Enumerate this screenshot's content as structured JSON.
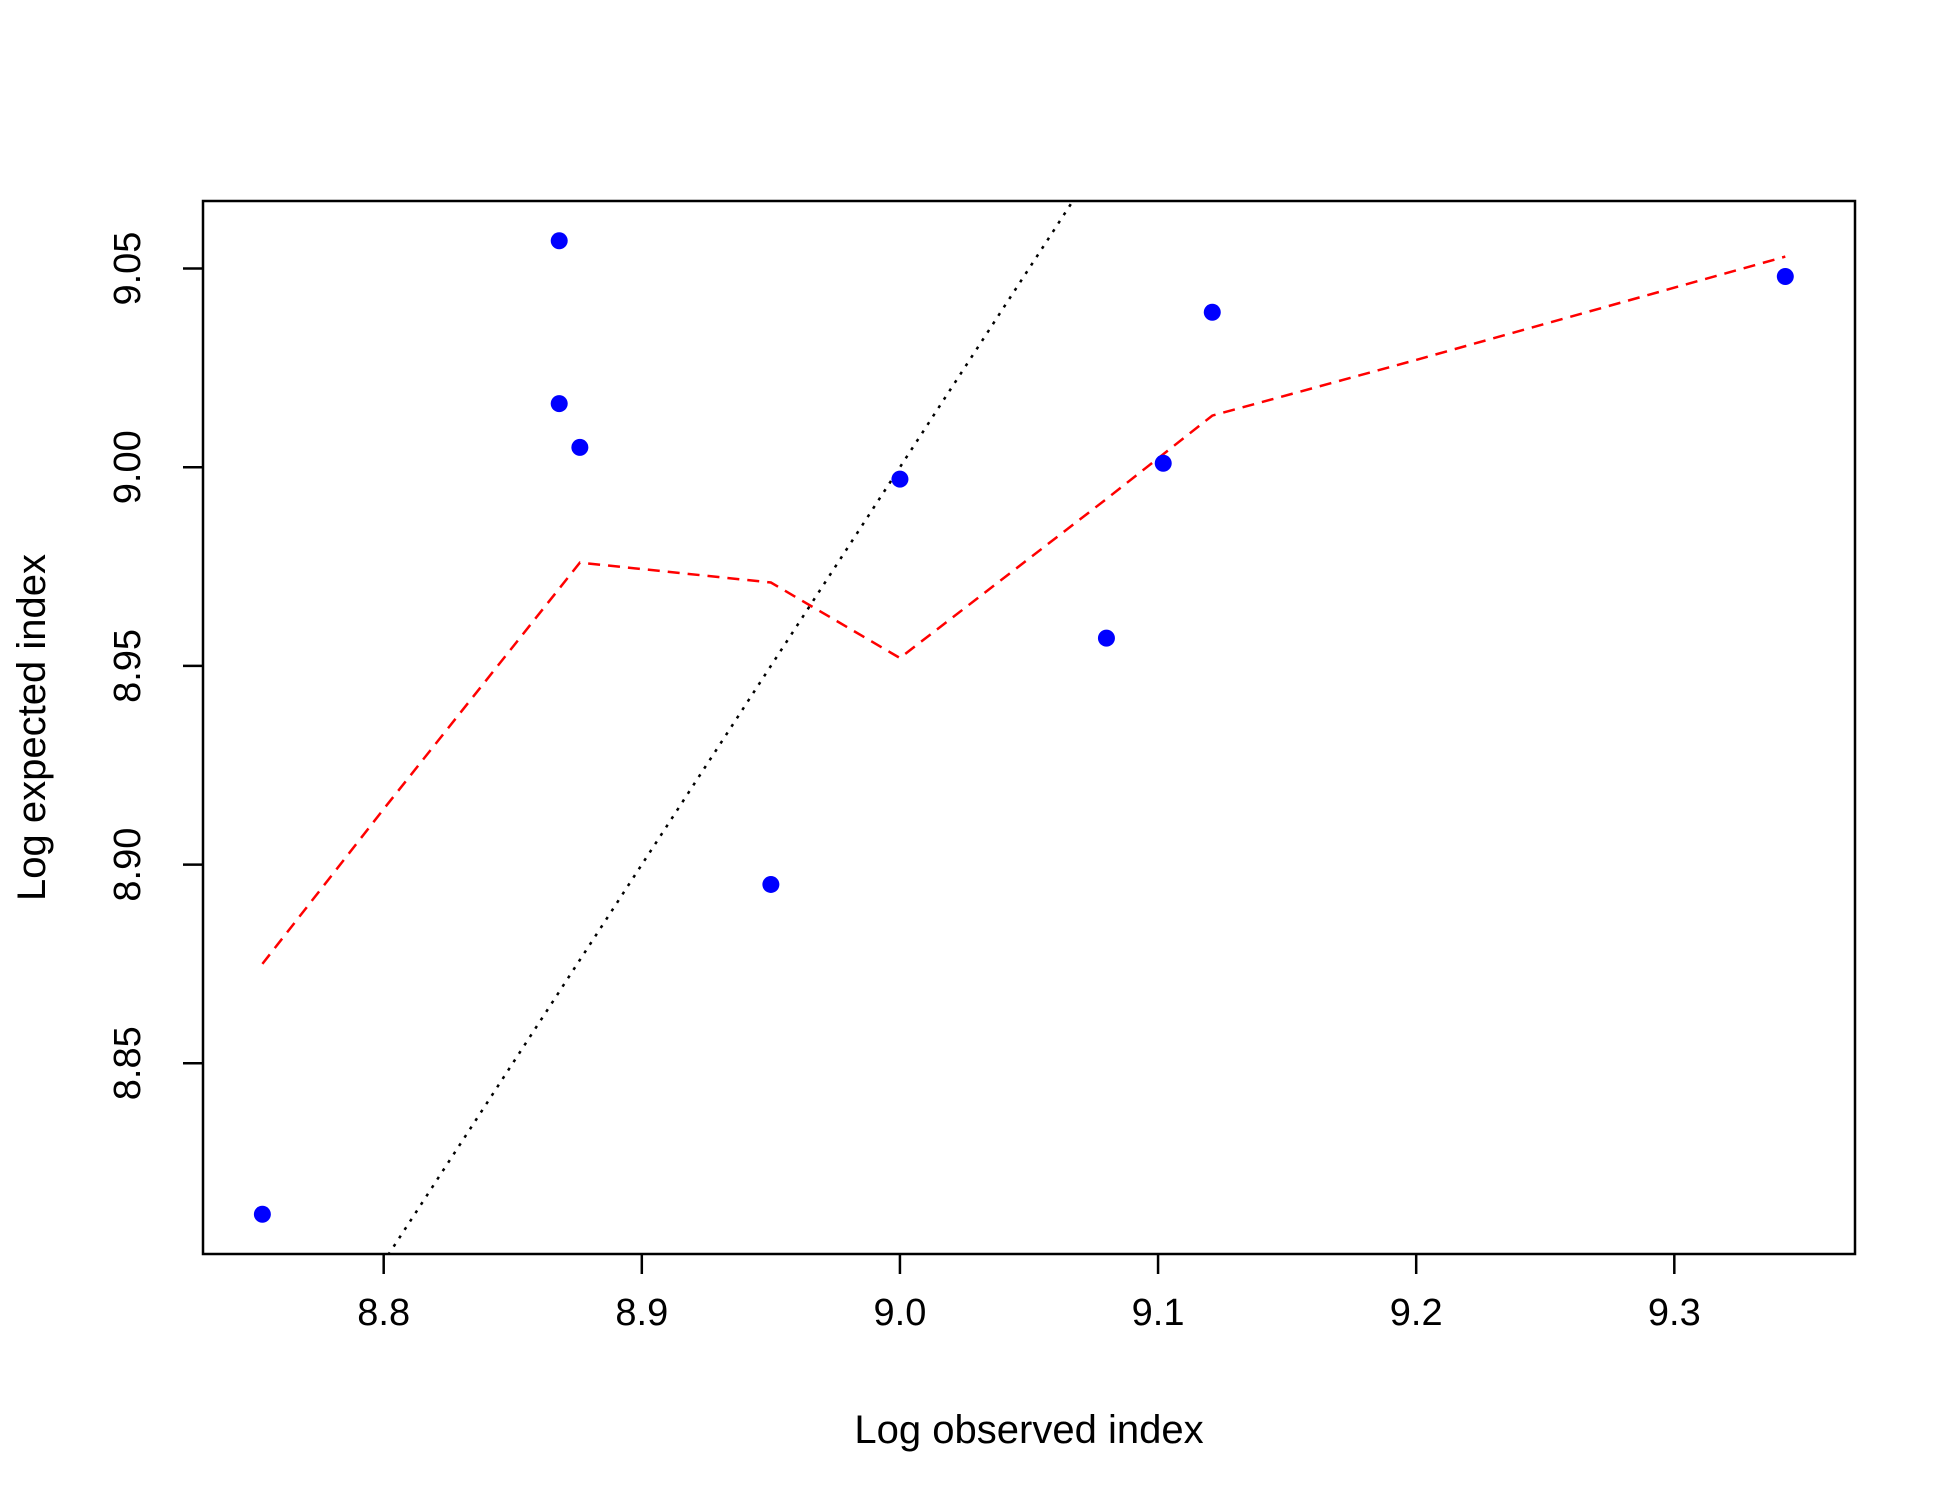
{
  "chart_data": {
    "type": "scatter",
    "title": "",
    "xlabel": "Log observed index",
    "ylabel": "Log expected index",
    "xlim": [
      8.73,
      9.37
    ],
    "ylim": [
      8.802,
      9.067
    ],
    "x_ticks": [
      8.8,
      8.9,
      9.0,
      9.1,
      9.2,
      9.3
    ],
    "x_tick_labels": [
      "8.8",
      "8.9",
      "9.0",
      "9.1",
      "9.2",
      "9.3"
    ],
    "y_ticks": [
      8.85,
      8.9,
      8.95,
      9.0,
      9.05
    ],
    "y_tick_labels": [
      "8.85",
      "8.90",
      "8.95",
      "9.00",
      "9.05"
    ],
    "grid": false,
    "series": [
      {
        "kind": "points",
        "color": "#0000ff",
        "points": [
          {
            "x": 8.753,
            "y": 8.812
          },
          {
            "x": 8.868,
            "y": 9.057
          },
          {
            "x": 8.868,
            "y": 9.016
          },
          {
            "x": 8.876,
            "y": 9.005
          },
          {
            "x": 8.95,
            "y": 8.895
          },
          {
            "x": 9.0,
            "y": 8.997
          },
          {
            "x": 9.08,
            "y": 8.957
          },
          {
            "x": 9.102,
            "y": 9.001
          },
          {
            "x": 9.121,
            "y": 9.039
          },
          {
            "x": 9.343,
            "y": 9.048
          }
        ]
      },
      {
        "kind": "smooth-line",
        "color": "#ff0000",
        "dash": "dashed",
        "points": [
          {
            "x": 8.753,
            "y": 8.875
          },
          {
            "x": 8.8,
            "y": 8.914
          },
          {
            "x": 8.876,
            "y": 8.976
          },
          {
            "x": 8.95,
            "y": 8.971
          },
          {
            "x": 9.0,
            "y": 8.952
          },
          {
            "x": 9.08,
            "y": 8.992
          },
          {
            "x": 9.121,
            "y": 9.013
          },
          {
            "x": 9.2,
            "y": 9.027
          },
          {
            "x": 9.343,
            "y": 9.053
          }
        ]
      },
      {
        "kind": "reference-line",
        "color": "#000000",
        "dash": "dotted",
        "slope": 1,
        "intercept": 0
      }
    ]
  }
}
